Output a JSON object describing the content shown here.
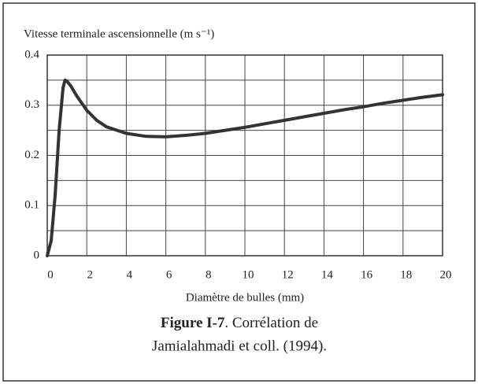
{
  "chart_data": {
    "type": "line",
    "ylabel": "Vitesse terminale ascensionnelle (m s⁻¹)",
    "xlabel": "Diamètre de bulles (mm)",
    "caption": {
      "label": "Figure I-7",
      "lines": [
        ". Corrélation de",
        "Jamialahmadi et coll. (1994)."
      ]
    },
    "x": [
      0,
      0.2,
      0.4,
      0.6,
      0.8,
      0.9,
      1.0,
      1.2,
      1.5,
      2,
      2.5,
      3,
      4,
      5,
      6,
      7,
      8,
      9,
      10,
      11,
      12,
      13,
      14,
      15,
      16,
      17,
      18,
      19,
      20
    ],
    "values": [
      0,
      0.03,
      0.12,
      0.25,
      0.335,
      0.35,
      0.348,
      0.338,
      0.318,
      0.29,
      0.27,
      0.257,
      0.244,
      0.238,
      0.237,
      0.24,
      0.244,
      0.25,
      0.256,
      0.263,
      0.27,
      0.277,
      0.284,
      0.291,
      0.297,
      0.304,
      0.31,
      0.316,
      0.321
    ],
    "color": "#333333",
    "xlim": [
      0,
      20
    ],
    "xticks": [
      0,
      2,
      4,
      6,
      8,
      10,
      12,
      14,
      16,
      18,
      20
    ],
    "ylim": [
      0,
      0.4
    ],
    "yticks": [
      0,
      0.1,
      0.2,
      0.3,
      0.4
    ],
    "yminor": [
      0.05,
      0.15,
      0.25,
      0.35
    ],
    "grid": true
  }
}
